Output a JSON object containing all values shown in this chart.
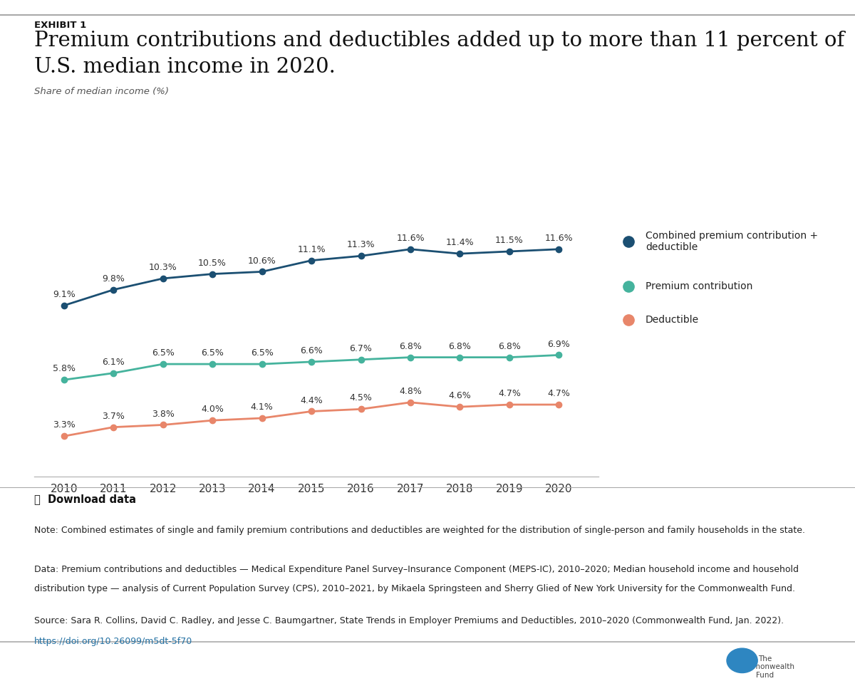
{
  "years": [
    2010,
    2011,
    2012,
    2013,
    2014,
    2015,
    2016,
    2017,
    2018,
    2019,
    2020
  ],
  "combined": [
    9.1,
    9.8,
    10.3,
    10.5,
    10.6,
    11.1,
    11.3,
    11.6,
    11.4,
    11.5,
    11.6
  ],
  "premium": [
    5.8,
    6.1,
    6.5,
    6.5,
    6.5,
    6.6,
    6.7,
    6.8,
    6.8,
    6.8,
    6.9
  ],
  "deductible": [
    3.3,
    3.7,
    3.8,
    4.0,
    4.1,
    4.4,
    4.5,
    4.8,
    4.6,
    4.7,
    4.7
  ],
  "combined_color": "#1b4f72",
  "premium_color": "#45b39d",
  "deductible_color": "#e8866a",
  "exhibit_label": "EXHIBIT 1",
  "title_line1": "Premium contributions and deductibles added up to more than 11 percent of",
  "title_line2": "U.S. median income in 2020.",
  "ylabel": "Share of median income (%)",
  "legend_combined": "Combined premium contribution +\ndeductible",
  "legend_premium": "Premium contribution",
  "legend_deductible": "Deductible",
  "note_text": "Note: Combined estimates of single and family premium contributions and deductibles are weighted for the distribution of single-person and family households in the state.",
  "data_text1": "Data: Premium contributions and deductibles — Medical Expenditure Panel Survey–Insurance Component (MEPS-IC), 2010–2020; Median household income and household",
  "data_text2": "distribution type — analysis of Current Population Survey (CPS), 2010–2021, by Mikaela Springsteen and Sherry Glied of New York University for the Commonwealth Fund.",
  "source_text": "Source: Sara R. Collins, David C. Radley, and Jesse C. Baumgartner, State Trends in Employer Premiums and Deductibles, 2010–2020 (Commonwealth Fund, Jan. 2022).",
  "url_text": "https://doi.org/10.26099/m5dt-5f70",
  "download_text": "⤓  Download data",
  "bg_color": "#ffffff",
  "ylim_min": 1.5,
  "ylim_max": 14.5
}
